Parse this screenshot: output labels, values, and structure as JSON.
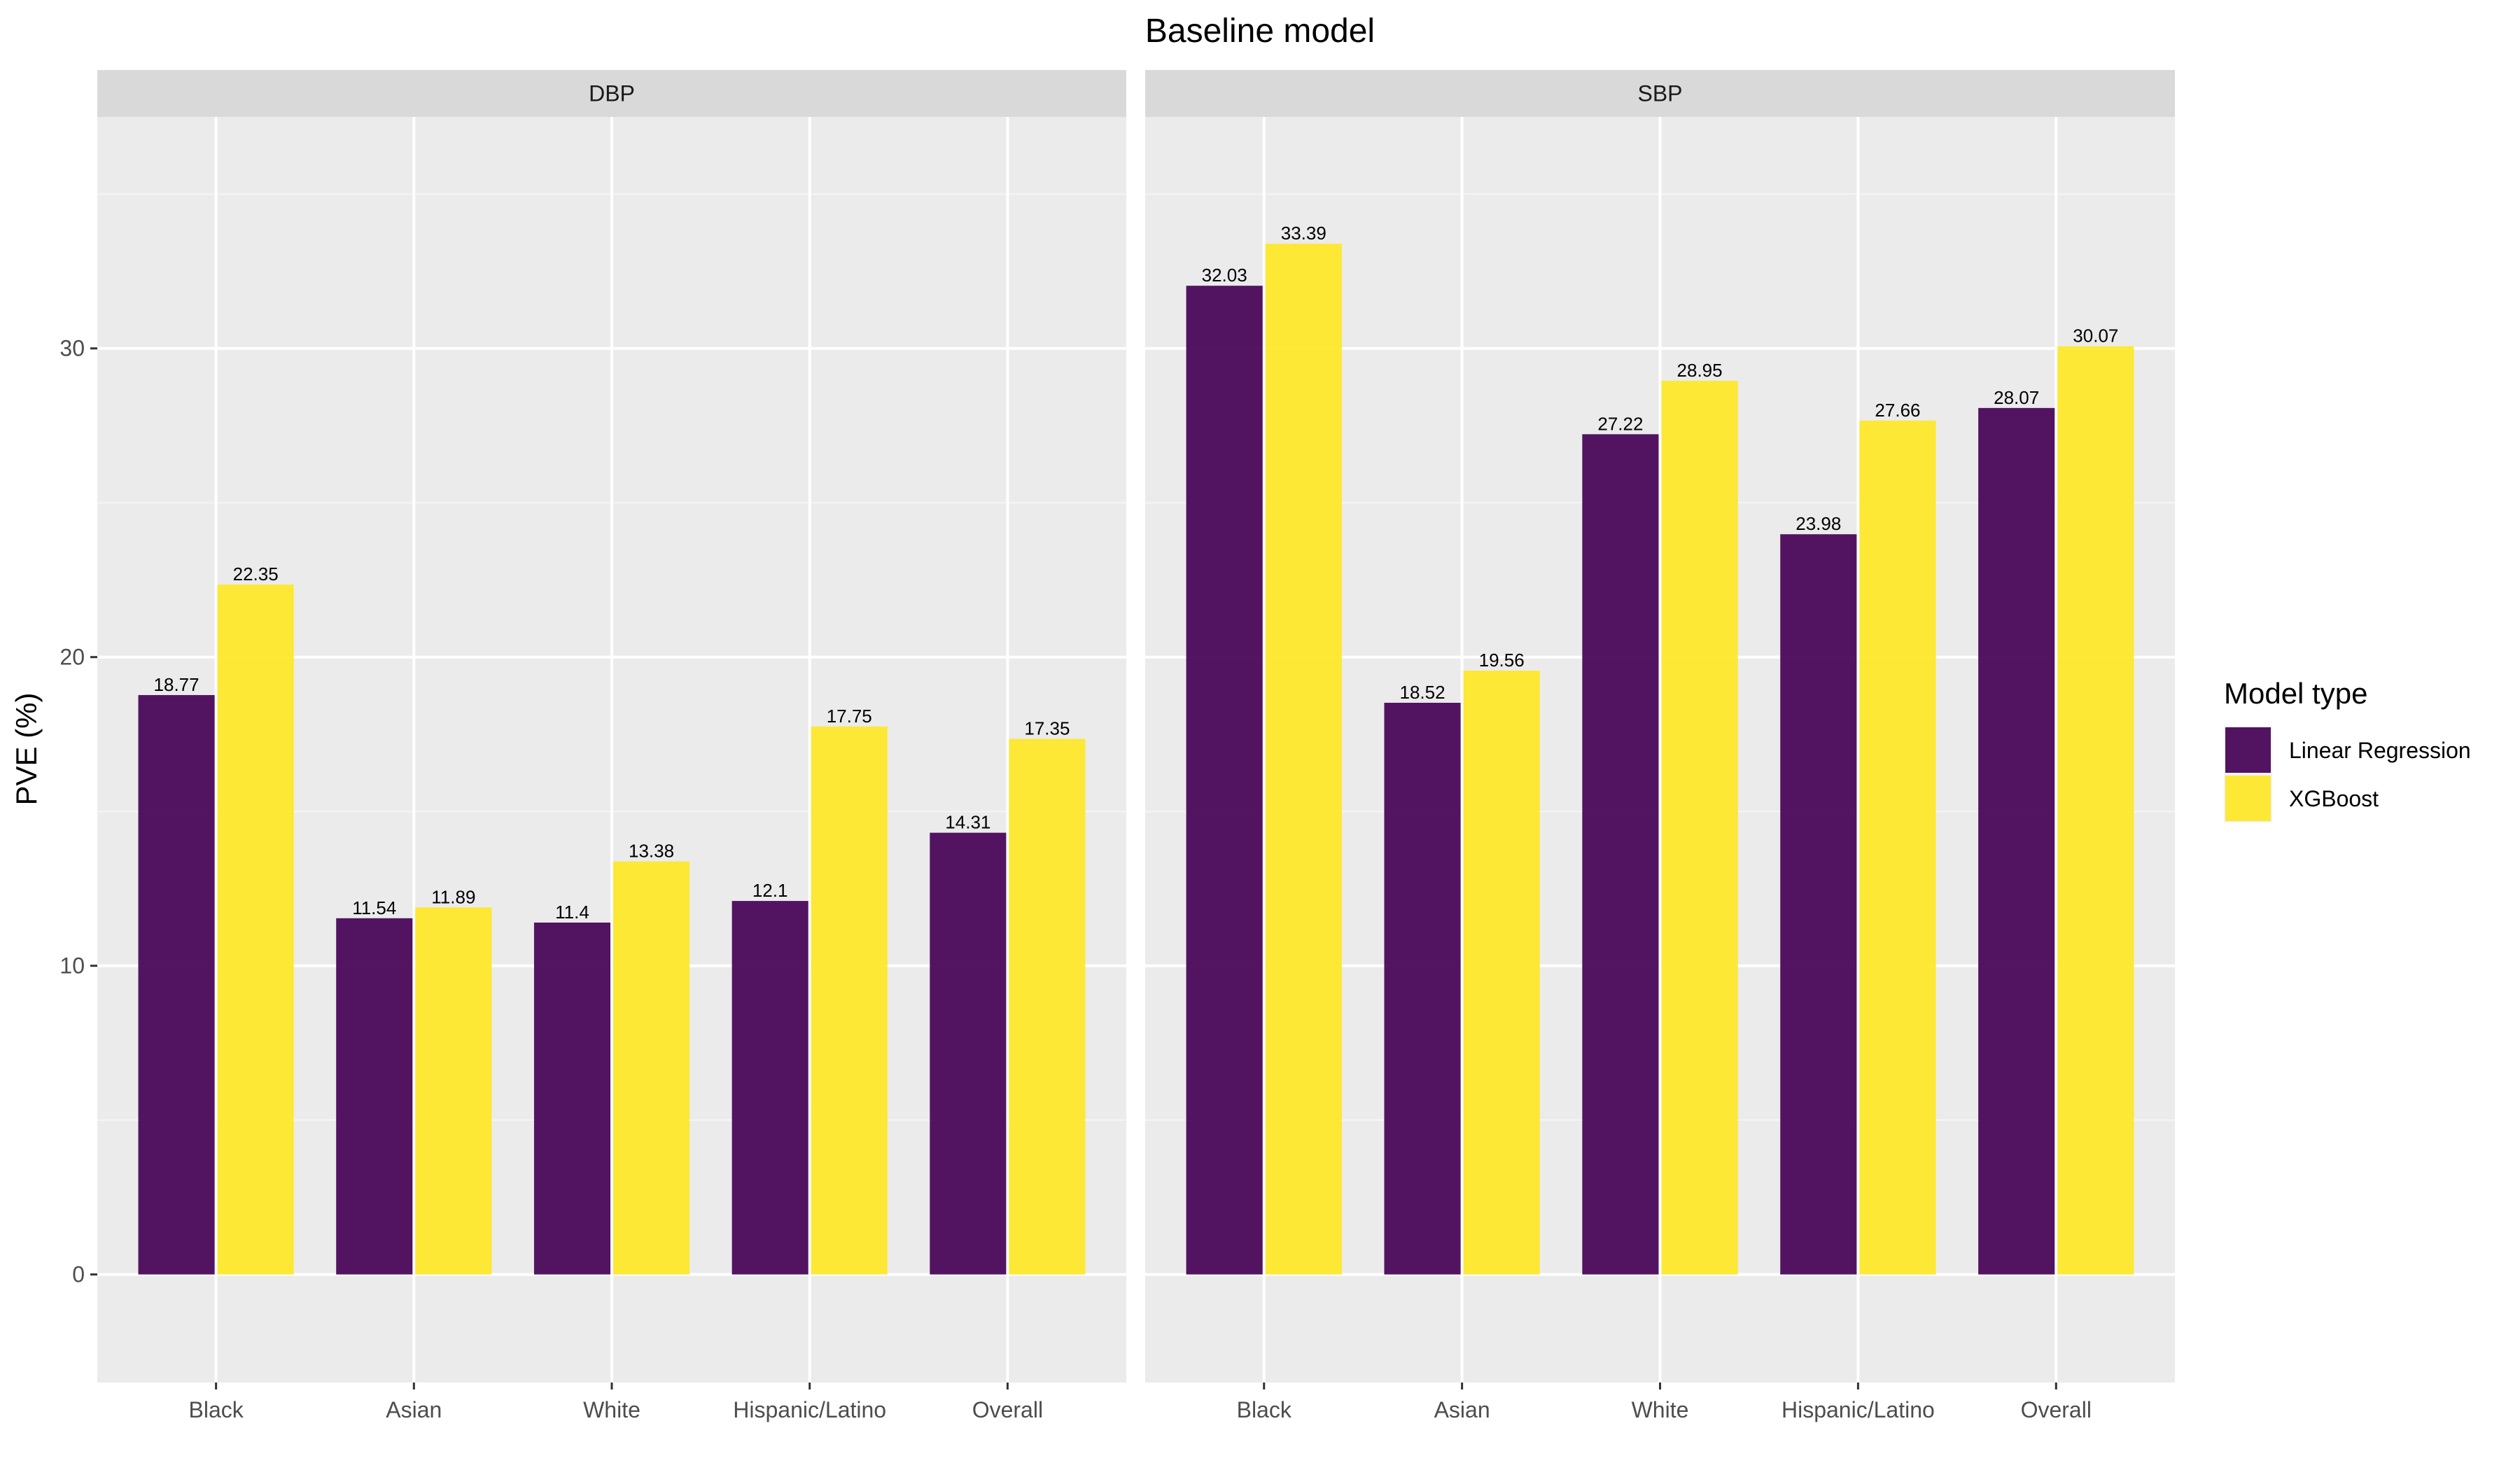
{
  "chart_data": {
    "type": "bar",
    "title": "Baseline model",
    "ylabel": "PVE (%)",
    "xlabel": "",
    "ylim": [
      -3.5,
      37.5
    ],
    "yticks": [
      0,
      10,
      20,
      30
    ],
    "grid": true,
    "legend_placement": "right",
    "legend_title": "Model type",
    "categories": [
      "Black",
      "Asian",
      "White",
      "Hispanic/Latino",
      "Overall"
    ],
    "series_styles": [
      {
        "name": "Linear Regression",
        "color": "#440154"
      },
      {
        "name": "XGBoost",
        "color": "#FDE725"
      }
    ],
    "panels": [
      {
        "name": "DBP",
        "series": [
          {
            "name": "Linear Regression",
            "values": [
              18.77,
              11.54,
              11.4,
              12.1,
              14.31
            ],
            "labels": [
              "18.77",
              "11.54",
              "11.4",
              "12.1",
              "14.31"
            ]
          },
          {
            "name": "XGBoost",
            "values": [
              22.35,
              11.89,
              13.38,
              17.75,
              17.35
            ],
            "labels": [
              "22.35",
              "11.89",
              "13.38",
              "17.75",
              "17.35"
            ]
          }
        ]
      },
      {
        "name": "SBP",
        "series": [
          {
            "name": "Linear Regression",
            "values": [
              32.03,
              18.52,
              27.22,
              23.98,
              28.07
            ],
            "labels": [
              "32.03",
              "18.52",
              "27.22",
              "23.98",
              "28.07"
            ]
          },
          {
            "name": "XGBoost",
            "values": [
              33.39,
              19.56,
              28.95,
              27.66,
              30.07
            ],
            "labels": [
              "33.39",
              "19.56",
              "28.95",
              "27.66",
              "30.07"
            ]
          }
        ]
      }
    ]
  }
}
